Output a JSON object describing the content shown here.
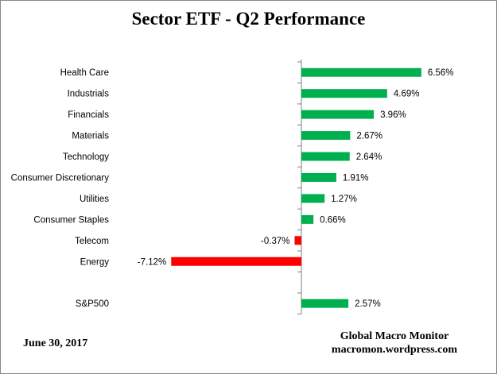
{
  "chart_data": {
    "type": "bar",
    "orientation": "horizontal",
    "title": "Sector ETF - Q2 Performance",
    "categories": [
      "Health Care",
      "Industrials",
      "Financials",
      "Materials",
      "Technology",
      "Consumer Discretionary",
      "Utilities",
      "Consumer Staples",
      "Telecom",
      "Energy",
      "",
      "S&P500"
    ],
    "values": [
      6.56,
      4.69,
      3.96,
      2.67,
      2.64,
      1.91,
      1.27,
      0.66,
      -0.37,
      -7.12,
      null,
      2.57
    ],
    "data_labels": [
      "6.56%",
      "4.69%",
      "3.96%",
      "2.67%",
      "2.64%",
      "1.91%",
      "1.27%",
      "0.66%",
      "-0.37%",
      "-7.12%",
      "",
      "2.57%"
    ],
    "unit": "%",
    "xlim": [
      -7.12,
      6.56
    ],
    "grid": false,
    "legend": "none",
    "colors": {
      "positive": "#00b050",
      "negative": "#ff0000",
      "axis": "#808080"
    }
  },
  "footer": {
    "date": "June 30, 2017",
    "source_name": "Global Macro Monitor",
    "source_url": "macromon.wordpress.com"
  }
}
